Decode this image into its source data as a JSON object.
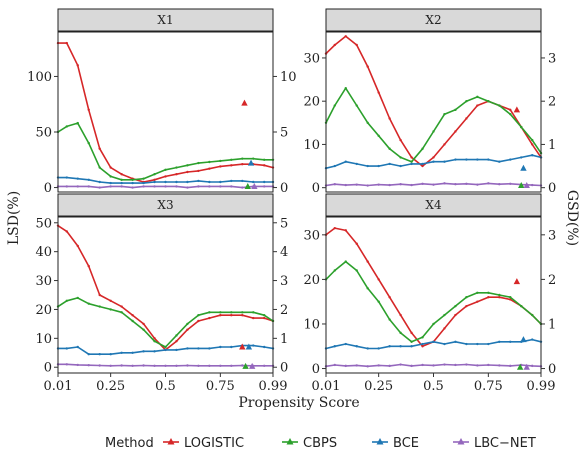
{
  "chart_data": {
    "type": "line",
    "xlabel": "Propensity Score",
    "ylabel_left": "LSD(%)",
    "ylabel_right": "GSD(%)",
    "x_ticks": [
      "0.01",
      "0.25",
      "0.5",
      "0.75",
      "0.99"
    ],
    "legend": {
      "title": "Method",
      "placement": "bottom",
      "entries": [
        {
          "name": "LOGISTIC",
          "color": "#d62728"
        },
        {
          "name": "CBPS",
          "color": "#2ca02c"
        },
        {
          "name": "BCE",
          "color": "#1f77b4"
        },
        {
          "name": "LBC−NET",
          "color": "#9467bd"
        }
      ]
    },
    "x": [
      0.01,
      0.05,
      0.1,
      0.15,
      0.2,
      0.25,
      0.3,
      0.35,
      0.4,
      0.45,
      0.5,
      0.55,
      0.6,
      0.65,
      0.7,
      0.75,
      0.8,
      0.85,
      0.9,
      0.95,
      0.99
    ],
    "panels": [
      {
        "title": "X1",
        "y_left": {
          "range": [
            -4,
            140
          ],
          "ticks": [
            "0",
            "50",
            "100"
          ],
          "tick_values": [
            0,
            50,
            100
          ]
        },
        "y_right": {
          "range": [
            -0.4,
            14
          ],
          "ticks": [
            "0",
            "5",
            "10"
          ],
          "tick_values": [
            0,
            5,
            10
          ]
        },
        "series": [
          {
            "name": "LOGISTIC",
            "y": [
              130,
              130,
              110,
              70,
              35,
              18,
              12,
              8,
              5,
              7,
              10,
              12,
              14,
              15,
              17,
              19,
              20,
              21,
              21,
              20,
              18
            ]
          },
          {
            "name": "CBPS",
            "y": [
              50,
              55,
              58,
              40,
              18,
              10,
              7,
              7,
              8,
              12,
              16,
              18,
              20,
              22,
              23,
              24,
              25,
              26,
              26,
              25,
              25
            ]
          },
          {
            "name": "BCE",
            "y": [
              9,
              9,
              8,
              7,
              5,
              4,
              4,
              4,
              4,
              5,
              5,
              5,
              5,
              6,
              5,
              5,
              6,
              6,
              5,
              5,
              5
            ]
          },
          {
            "name": "LBC−NET",
            "y": [
              1,
              1,
              1,
              1,
              0,
              1,
              1,
              0,
              1,
              1,
              1,
              1,
              0,
              1,
              1,
              1,
              1,
              0,
              1,
              1,
              1
            ]
          }
        ],
        "gsd_points": [
          {
            "name": "LOGISTIC",
            "x": 0.86,
            "gsd": 7.6
          },
          {
            "name": "CBPS",
            "x": 0.875,
            "gsd": 0.1
          },
          {
            "name": "BCE",
            "x": 0.89,
            "gsd": 2.2
          },
          {
            "name": "LBC−NET",
            "x": 0.905,
            "gsd": 0.1
          }
        ]
      },
      {
        "title": "X2",
        "y_left": {
          "range": [
            -1,
            36
          ],
          "ticks": [
            "0",
            "10",
            "20",
            "30"
          ],
          "tick_values": [
            0,
            10,
            20,
            30
          ]
        },
        "y_right": {
          "range": [
            -0.1,
            3.6
          ],
          "ticks": [
            "0",
            "1",
            "2",
            "3"
          ],
          "tick_values": [
            0,
            1,
            2,
            3
          ]
        },
        "series": [
          {
            "name": "LOGISTIC",
            "y": [
              31,
              33,
              35,
              33,
              28,
              22,
              16,
              11,
              7,
              5,
              7,
              10,
              13,
              16,
              19,
              20,
              19,
              18,
              14,
              10,
              7
            ]
          },
          {
            "name": "CBPS",
            "y": [
              15,
              19,
              23,
              19,
              15,
              12,
              9,
              7,
              6,
              9,
              13,
              17,
              18,
              20,
              21,
              20,
              19,
              17,
              14,
              11,
              8
            ]
          },
          {
            "name": "BCE",
            "y": [
              4.5,
              5,
              6,
              5.5,
              5,
              5,
              5.5,
              5,
              5.5,
              5.5,
              6,
              6,
              6.5,
              6.5,
              6.5,
              6.5,
              6,
              6.5,
              7,
              7.5,
              7
            ]
          },
          {
            "name": "LBC−NET",
            "y": [
              0.5,
              0.8,
              0.6,
              0.7,
              0.5,
              0.7,
              0.6,
              0.8,
              0.6,
              0.9,
              0.7,
              1.0,
              0.8,
              0.9,
              0.7,
              1.0,
              0.8,
              0.9,
              0.7,
              0.6,
              0.5
            ]
          }
        ],
        "gsd_points": [
          {
            "name": "LOGISTIC",
            "x": 0.88,
            "gsd": 1.8
          },
          {
            "name": "CBPS",
            "x": 0.9,
            "gsd": 0.05
          },
          {
            "name": "BCE",
            "x": 0.91,
            "gsd": 0.45
          },
          {
            "name": "LBC−NET",
            "x": 0.925,
            "gsd": 0.05
          }
        ]
      },
      {
        "title": "X3",
        "y_left": {
          "range": [
            -2,
            52
          ],
          "ticks": [
            "0",
            "10",
            "20",
            "30",
            "40",
            "50"
          ],
          "tick_values": [
            0,
            10,
            20,
            30,
            40,
            50
          ]
        },
        "y_right": {
          "range": [
            -0.2,
            5.2
          ],
          "ticks": [
            "0",
            "1",
            "2",
            "3",
            "4",
            "5"
          ],
          "tick_values": [
            0,
            1,
            2,
            3,
            4,
            5
          ]
        },
        "series": [
          {
            "name": "LOGISTIC",
            "y": [
              49,
              47,
              42,
              35,
              25,
              23,
              21,
              18,
              15,
              10,
              6,
              9,
              13,
              16,
              17,
              18,
              18,
              18,
              17,
              17,
              16
            ]
          },
          {
            "name": "CBPS",
            "y": [
              21,
              23,
              24,
              22,
              21,
              20,
              19,
              16,
              13,
              9,
              7,
              11,
              15,
              18,
              19,
              19,
              19,
              19,
              19,
              18,
              16
            ]
          },
          {
            "name": "BCE",
            "y": [
              6.5,
              6.5,
              7,
              4.5,
              4.5,
              4.5,
              5,
              5,
              5.5,
              5.5,
              6,
              6,
              6.5,
              6.5,
              6.5,
              7,
              7,
              7.5,
              7.5,
              7,
              6.5
            ]
          },
          {
            "name": "LBC−NET",
            "y": [
              1,
              1,
              0.8,
              0.7,
              0.6,
              0.5,
              0.6,
              0.5,
              0.6,
              0.5,
              0.5,
              0.5,
              0.6,
              0.5,
              0.5,
              0.5,
              0.5,
              0.6,
              0.5,
              0.5,
              0.5
            ]
          }
        ],
        "gsd_points": [
          {
            "name": "LOGISTIC",
            "x": 0.85,
            "gsd": 0.7
          },
          {
            "name": "CBPS",
            "x": 0.865,
            "gsd": 0.03
          },
          {
            "name": "BCE",
            "x": 0.88,
            "gsd": 0.7
          },
          {
            "name": "LBC−NET",
            "x": 0.895,
            "gsd": 0.03
          }
        ]
      },
      {
        "title": "X4",
        "y_left": {
          "range": [
            -1,
            34
          ],
          "ticks": [
            "0",
            "10",
            "20",
            "30"
          ],
          "tick_values": [
            0,
            10,
            20,
            30
          ]
        },
        "y_right": {
          "range": [
            -0.1,
            3.4
          ],
          "ticks": [
            "0",
            "1",
            "2",
            "3"
          ],
          "tick_values": [
            0,
            1,
            2,
            3
          ]
        },
        "series": [
          {
            "name": "LOGISTIC",
            "y": [
              30,
              31.5,
              31,
              28,
              24,
              20,
              16,
              12,
              8,
              5,
              6,
              9,
              12,
              14,
              15,
              16,
              16,
              15.5,
              14,
              12,
              10
            ]
          },
          {
            "name": "CBPS",
            "y": [
              20,
              22,
              24,
              22,
              18,
              15,
              11,
              8,
              6,
              7,
              10,
              12,
              14,
              16,
              17,
              17,
              16.5,
              16,
              14,
              12,
              10
            ]
          },
          {
            "name": "BCE",
            "y": [
              4.5,
              5,
              5.5,
              5,
              4.5,
              4.5,
              5,
              5,
              5,
              5.5,
              6,
              5.5,
              6,
              5.5,
              5.5,
              5.5,
              6,
              6,
              6,
              6.5,
              6
            ]
          },
          {
            "name": "LBC−NET",
            "y": [
              0.5,
              0.8,
              0.6,
              0.7,
              0.5,
              0.7,
              0.6,
              0.9,
              0.6,
              0.8,
              0.7,
              0.9,
              0.8,
              0.9,
              0.7,
              0.8,
              0.7,
              0.6,
              0.8,
              0.6,
              0.5
            ]
          }
        ],
        "gsd_points": [
          {
            "name": "LOGISTIC",
            "x": 0.88,
            "gsd": 1.95
          },
          {
            "name": "CBPS",
            "x": 0.895,
            "gsd": 0.03
          },
          {
            "name": "BCE",
            "x": 0.91,
            "gsd": 0.65
          },
          {
            "name": "LBC−NET",
            "x": 0.925,
            "gsd": 0.03
          }
        ]
      }
    ]
  }
}
